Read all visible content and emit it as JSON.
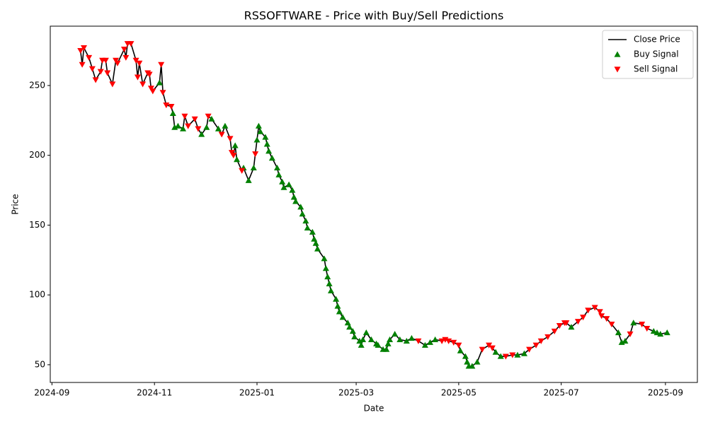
{
  "chart_data": {
    "type": "line",
    "title": "RSSOFTWARE - Price with Buy/Sell Predictions",
    "x_label": "Date",
    "y_label": "Price",
    "xlim": [
      "2024-08-31",
      "2025-09-20"
    ],
    "xticks": [
      {
        "value": "2024-09-01",
        "label": "2024-09"
      },
      {
        "value": "2024-11-01",
        "label": "2024-11"
      },
      {
        "value": "2025-01-01",
        "label": "2025-01"
      },
      {
        "value": "2025-03-01",
        "label": "2025-03"
      },
      {
        "value": "2025-05-01",
        "label": "2025-05"
      },
      {
        "value": "2025-07-01",
        "label": "2025-07"
      },
      {
        "value": "2025-09-01",
        "label": "2025-09"
      }
    ],
    "ylim": [
      37.3,
      292.5
    ],
    "yticks": [
      50,
      100,
      150,
      200,
      250
    ],
    "grid": false,
    "legend": "upper right",
    "series": [
      {
        "name": "Close Price",
        "color": "#000000",
        "marker": "line",
        "x": [
          "2024-09-18",
          "2024-09-19",
          "2024-09-20",
          "2024-09-23",
          "2024-09-25",
          "2024-09-27",
          "2024-09-30",
          "2024-10-01",
          "2024-10-03",
          "2024-10-04",
          "2024-10-07",
          "2024-10-09",
          "2024-10-10",
          "2024-10-14",
          "2024-10-15",
          "2024-10-16",
          "2024-10-18",
          "2024-10-21",
          "2024-10-22",
          "2024-10-23",
          "2024-10-25",
          "2024-10-28",
          "2024-10-29",
          "2024-10-30",
          "2024-10-31",
          "2024-11-04",
          "2024-11-05",
          "2024-11-06",
          "2024-11-08",
          "2024-11-11",
          "2024-11-12",
          "2024-11-13",
          "2024-11-15",
          "2024-11-18",
          "2024-11-19",
          "2024-11-21",
          "2024-11-25",
          "2024-11-27",
          "2024-11-29",
          "2024-12-02",
          "2024-12-03",
          "2024-12-05",
          "2024-12-09",
          "2024-12-11",
          "2024-12-13",
          "2024-12-16",
          "2024-12-17",
          "2024-12-18",
          "2024-12-19",
          "2024-12-20",
          "2024-12-23",
          "2024-12-24",
          "2024-12-27",
          "2024-12-30",
          "2024-12-31",
          "2025-01-01",
          "2025-01-02",
          "2025-01-03",
          "2025-01-06",
          "2025-01-07",
          "2025-01-08",
          "2025-01-10",
          "2025-01-13",
          "2025-01-14",
          "2025-01-16",
          "2025-01-17",
          "2025-01-20",
          "2025-01-22",
          "2025-01-23",
          "2025-01-24",
          "2025-01-27",
          "2025-01-28",
          "2025-01-30",
          "2025-01-31",
          "2025-02-03",
          "2025-02-04",
          "2025-02-05",
          "2025-02-06",
          "2025-02-10",
          "2025-02-11",
          "2025-02-12",
          "2025-02-13",
          "2025-02-14",
          "2025-02-17",
          "2025-02-18",
          "2025-02-19",
          "2025-02-21",
          "2025-02-24",
          "2025-02-25",
          "2025-02-27",
          "2025-02-28",
          "2025-03-03",
          "2025-03-04",
          "2025-03-05",
          "2025-03-07",
          "2025-03-10",
          "2025-03-13",
          "2025-03-14",
          "2025-03-17",
          "2025-03-19",
          "2025-03-20",
          "2025-03-21",
          "2025-03-24",
          "2025-03-27",
          "2025-03-31",
          "2025-04-03",
          "2025-04-07",
          "2025-04-11",
          "2025-04-14",
          "2025-04-17",
          "2025-04-21",
          "2025-04-23",
          "2025-04-25",
          "2025-04-28",
          "2025-05-01",
          "2025-05-02",
          "2025-05-05",
          "2025-05-06",
          "2025-05-07",
          "2025-05-09",
          "2025-05-12",
          "2025-05-15",
          "2025-05-19",
          "2025-05-21",
          "2025-05-23",
          "2025-05-26",
          "2025-05-29",
          "2025-06-02",
          "2025-06-05",
          "2025-06-09",
          "2025-06-12",
          "2025-06-16",
          "2025-06-19",
          "2025-06-23",
          "2025-06-27",
          "2025-06-30",
          "2025-07-03",
          "2025-07-04",
          "2025-07-07",
          "2025-07-11",
          "2025-07-14",
          "2025-07-17",
          "2025-07-21",
          "2025-07-24",
          "2025-07-25",
          "2025-07-28",
          "2025-07-31",
          "2025-08-04",
          "2025-08-06",
          "2025-08-08",
          "2025-08-11",
          "2025-08-13",
          "2025-08-18",
          "2025-08-21",
          "2025-08-25",
          "2025-08-27",
          "2025-08-29",
          "2025-09-02"
        ],
        "values": [
          275,
          265,
          277,
          270,
          262,
          254,
          260,
          268,
          268,
          259,
          251,
          268,
          266,
          276,
          270,
          280,
          280,
          268,
          256,
          266,
          251,
          259,
          258,
          248,
          246,
          252,
          265,
          245,
          236,
          235,
          230,
          220,
          221,
          219,
          228,
          221,
          226,
          219,
          215,
          220,
          228,
          226,
          219,
          215,
          221,
          212,
          202,
          200,
          207,
          197,
          189,
          191,
          182,
          191,
          201,
          211,
          221,
          217,
          213,
          208,
          203,
          198,
          191,
          186,
          181,
          177,
          179,
          175,
          170,
          167,
          163,
          158,
          153,
          148,
          145,
          140,
          137,
          133,
          126,
          119,
          113,
          108,
          103,
          97,
          92,
          88,
          84,
          80,
          77,
          74,
          70,
          67,
          64,
          68,
          73,
          68,
          65,
          64,
          61,
          61,
          65,
          68,
          72,
          68,
          67,
          69,
          67,
          64,
          66,
          68,
          67,
          68,
          67,
          66,
          64,
          60,
          56,
          52,
          49,
          49,
          52,
          61,
          64,
          62,
          59,
          56,
          56,
          57,
          57,
          58,
          61,
          64,
          67,
          70,
          74,
          78,
          80,
          80,
          77,
          81,
          84,
          89,
          91,
          88,
          85,
          83,
          79,
          73,
          66,
          67,
          72,
          80,
          79,
          76,
          74,
          73,
          72,
          73
        ]
      },
      {
        "name": "Buy Signal",
        "color": "#008000",
        "marker": "^",
        "x": [
          "2024-11-04",
          "2024-11-12",
          "2024-11-13",
          "2024-11-15",
          "2024-11-18",
          "2024-11-29",
          "2024-12-02",
          "2024-12-05",
          "2024-12-09",
          "2024-12-13",
          "2024-12-19",
          "2024-12-20",
          "2024-12-24",
          "2024-12-27",
          "2024-12-30",
          "2025-01-01",
          "2025-01-02",
          "2025-01-03",
          "2025-01-06",
          "2025-01-07",
          "2025-01-08",
          "2025-01-10",
          "2025-01-13",
          "2025-01-14",
          "2025-01-16",
          "2025-01-17",
          "2025-01-20",
          "2025-01-22",
          "2025-01-23",
          "2025-01-24",
          "2025-01-27",
          "2025-01-28",
          "2025-01-30",
          "2025-01-31",
          "2025-02-03",
          "2025-02-04",
          "2025-02-05",
          "2025-02-06",
          "2025-02-10",
          "2025-02-11",
          "2025-02-12",
          "2025-02-13",
          "2025-02-14",
          "2025-02-17",
          "2025-02-18",
          "2025-02-19",
          "2025-02-21",
          "2025-02-24",
          "2025-02-25",
          "2025-02-27",
          "2025-02-28",
          "2025-03-03",
          "2025-03-04",
          "2025-03-05",
          "2025-03-07",
          "2025-03-10",
          "2025-03-13",
          "2025-03-14",
          "2025-03-17",
          "2025-03-19",
          "2025-03-20",
          "2025-03-21",
          "2025-03-24",
          "2025-03-27",
          "2025-03-31",
          "2025-04-03",
          "2025-04-11",
          "2025-04-14",
          "2025-04-17",
          "2025-05-02",
          "2025-05-05",
          "2025-05-06",
          "2025-05-07",
          "2025-05-09",
          "2025-05-12",
          "2025-05-23",
          "2025-05-26",
          "2025-06-05",
          "2025-06-09",
          "2025-07-07",
          "2025-08-04",
          "2025-08-06",
          "2025-08-08",
          "2025-08-13",
          "2025-08-25",
          "2025-08-27",
          "2025-08-29",
          "2025-09-02"
        ],
        "values": [
          252,
          230,
          220,
          221,
          219,
          215,
          220,
          226,
          219,
          221,
          207,
          197,
          191,
          182,
          191,
          211,
          221,
          217,
          213,
          208,
          203,
          198,
          191,
          186,
          181,
          177,
          179,
          175,
          170,
          167,
          163,
          158,
          153,
          148,
          145,
          140,
          137,
          133,
          126,
          119,
          113,
          108,
          103,
          97,
          92,
          88,
          84,
          80,
          77,
          74,
          70,
          67,
          64,
          68,
          73,
          68,
          65,
          64,
          61,
          61,
          65,
          68,
          72,
          68,
          67,
          69,
          64,
          66,
          68,
          60,
          56,
          52,
          49,
          49,
          52,
          59,
          56,
          57,
          58,
          77,
          73,
          66,
          67,
          80,
          74,
          73,
          72,
          73
        ]
      },
      {
        "name": "Sell Signal",
        "color": "#ff0000",
        "marker": "v",
        "x": [
          "2024-09-18",
          "2024-09-19",
          "2024-09-20",
          "2024-09-23",
          "2024-09-25",
          "2024-09-27",
          "2024-09-30",
          "2024-10-01",
          "2024-10-03",
          "2024-10-04",
          "2024-10-07",
          "2024-10-09",
          "2024-10-10",
          "2024-10-14",
          "2024-10-15",
          "2024-10-16",
          "2024-10-18",
          "2024-10-21",
          "2024-10-22",
          "2024-10-23",
          "2024-10-25",
          "2024-10-28",
          "2024-10-29",
          "2024-10-30",
          "2024-10-31",
          "2024-11-05",
          "2024-11-06",
          "2024-11-08",
          "2024-11-11",
          "2024-11-19",
          "2024-11-21",
          "2024-11-25",
          "2024-11-27",
          "2024-12-03",
          "2024-12-11",
          "2024-12-16",
          "2024-12-17",
          "2024-12-18",
          "2024-12-23",
          "2024-12-31",
          "2025-04-07",
          "2025-04-21",
          "2025-04-23",
          "2025-04-25",
          "2025-04-28",
          "2025-05-01",
          "2025-05-15",
          "2025-05-19",
          "2025-05-21",
          "2025-05-29",
          "2025-06-02",
          "2025-06-12",
          "2025-06-16",
          "2025-06-19",
          "2025-06-23",
          "2025-06-27",
          "2025-06-30",
          "2025-07-03",
          "2025-07-04",
          "2025-07-11",
          "2025-07-14",
          "2025-07-17",
          "2025-07-21",
          "2025-07-24",
          "2025-07-25",
          "2025-07-28",
          "2025-07-31",
          "2025-08-11",
          "2025-08-18",
          "2025-08-21"
        ],
        "values": [
          275,
          265,
          277,
          270,
          262,
          254,
          260,
          268,
          268,
          259,
          251,
          268,
          266,
          276,
          270,
          280,
          280,
          268,
          256,
          266,
          251,
          259,
          258,
          248,
          246,
          265,
          245,
          236,
          235,
          228,
          221,
          226,
          219,
          228,
          215,
          212,
          202,
          200,
          189,
          201,
          67,
          67,
          68,
          67,
          66,
          64,
          61,
          64,
          62,
          56,
          57,
          61,
          64,
          67,
          70,
          74,
          78,
          80,
          80,
          81,
          84,
          89,
          91,
          88,
          85,
          83,
          79,
          72,
          79,
          76
        ]
      }
    ]
  }
}
